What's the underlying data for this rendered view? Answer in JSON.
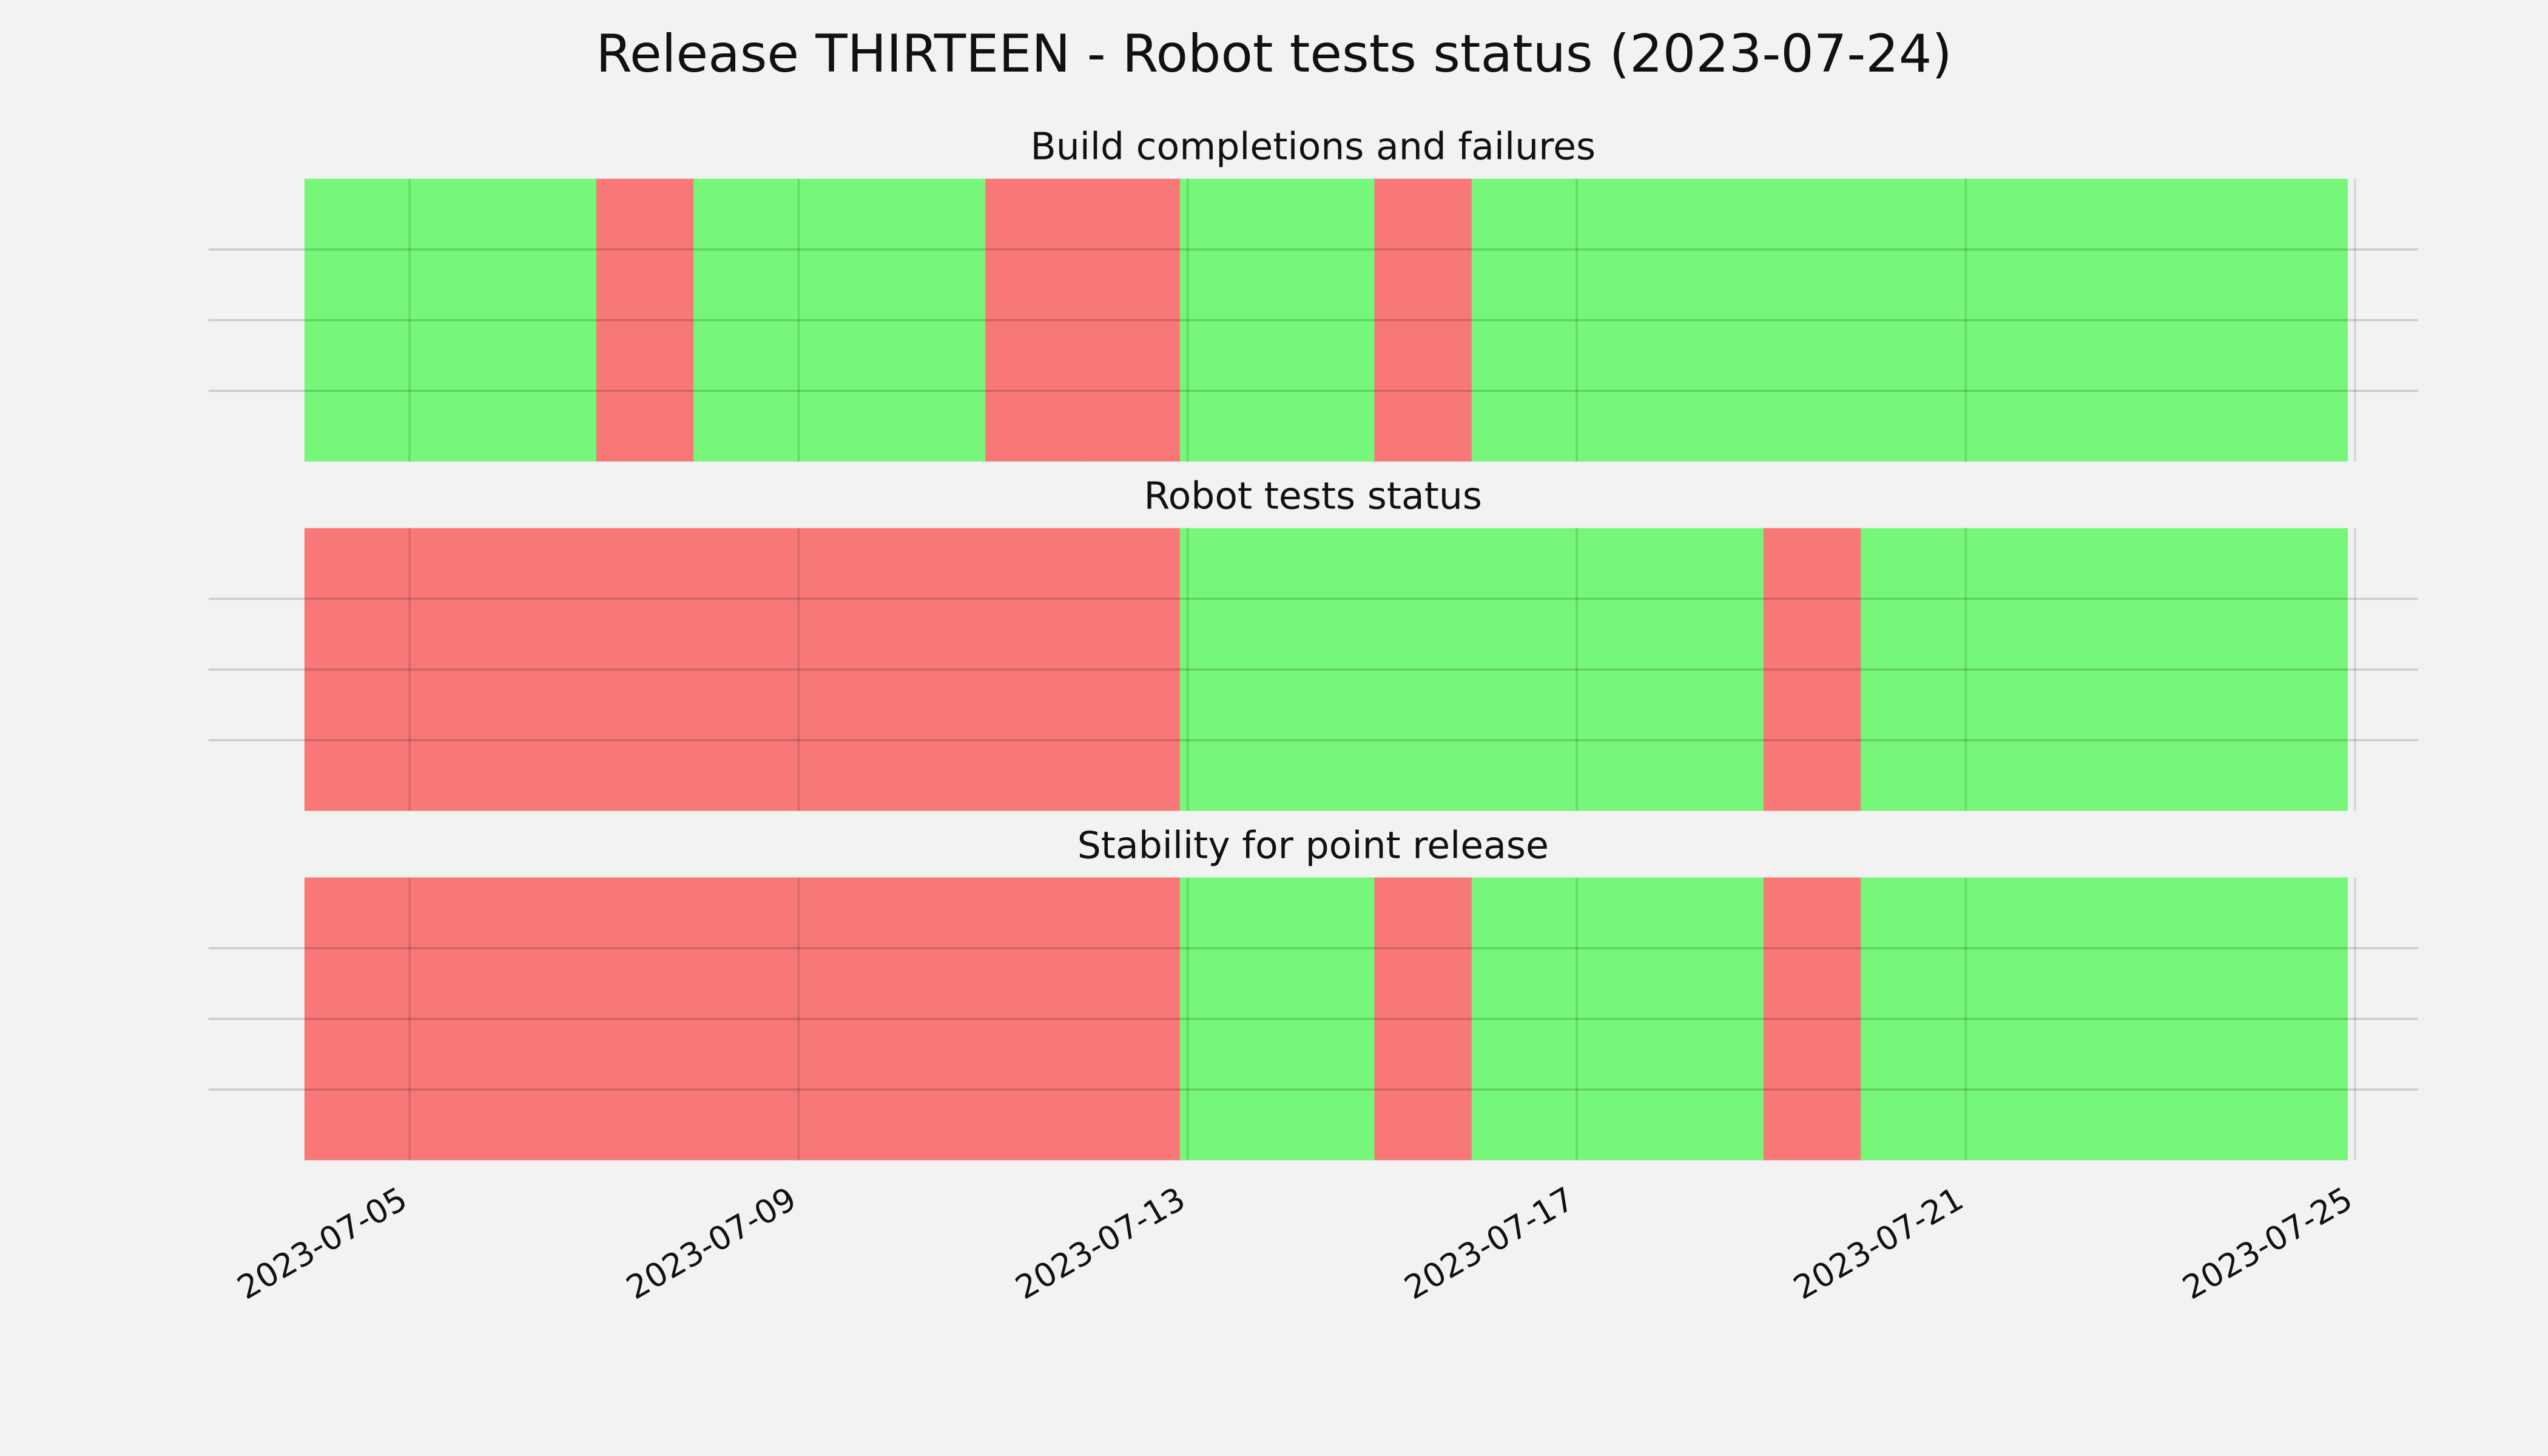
{
  "title": "Release THIRTEEN - Robot tests status (2023-07-24)",
  "chart_data": [
    {
      "type": "timeline",
      "title": "Build completions and failures",
      "categories": [
        "2023-07-04",
        "2023-07-05",
        "2023-07-06",
        "2023-07-07",
        "2023-07-08",
        "2023-07-09",
        "2023-07-10",
        "2023-07-11",
        "2023-07-12",
        "2023-07-13",
        "2023-07-14",
        "2023-07-15",
        "2023-07-16",
        "2023-07-17",
        "2023-07-18",
        "2023-07-19",
        "2023-07-20",
        "2023-07-21",
        "2023-07-22",
        "2023-07-23",
        "2023-07-24"
      ],
      "values": [
        1,
        1,
        1,
        0,
        1,
        1,
        1,
        0,
        0,
        1,
        1,
        0,
        1,
        1,
        1,
        1,
        1,
        1,
        1,
        1,
        1
      ],
      "colors": [
        "#f77876",
        "#76f779"
      ],
      "xlim": [
        "2023-07-03",
        "2023-07-26"
      ],
      "xticks": [
        "2023-07-05",
        "2023-07-09",
        "2023-07-13",
        "2023-07-17",
        "2023-07-21",
        "2023-07-25"
      ],
      "ylim": [
        0,
        1
      ],
      "yticks": [
        0.25,
        0.5,
        0.75
      ],
      "grid": true
    },
    {
      "type": "timeline",
      "title": "Robot tests status",
      "categories": [
        "2023-07-04",
        "2023-07-05",
        "2023-07-06",
        "2023-07-07",
        "2023-07-08",
        "2023-07-09",
        "2023-07-10",
        "2023-07-11",
        "2023-07-12",
        "2023-07-13",
        "2023-07-14",
        "2023-07-15",
        "2023-07-16",
        "2023-07-17",
        "2023-07-18",
        "2023-07-19",
        "2023-07-20",
        "2023-07-21",
        "2023-07-22",
        "2023-07-23",
        "2023-07-24"
      ],
      "values": [
        0,
        0,
        0,
        0,
        0,
        0,
        0,
        0,
        0,
        1,
        1,
        1,
        1,
        1,
        1,
        0,
        1,
        1,
        1,
        1,
        1
      ],
      "colors": [
        "#f77876",
        "#76f779"
      ],
      "xlim": [
        "2023-07-03",
        "2023-07-26"
      ],
      "xticks": [
        "2023-07-05",
        "2023-07-09",
        "2023-07-13",
        "2023-07-17",
        "2023-07-21",
        "2023-07-25"
      ],
      "ylim": [
        0,
        1
      ],
      "yticks": [
        0.25,
        0.5,
        0.75
      ],
      "grid": true
    },
    {
      "type": "timeline",
      "title": "Stability for point release",
      "categories": [
        "2023-07-04",
        "2023-07-05",
        "2023-07-06",
        "2023-07-07",
        "2023-07-08",
        "2023-07-09",
        "2023-07-10",
        "2023-07-11",
        "2023-07-12",
        "2023-07-13",
        "2023-07-14",
        "2023-07-15",
        "2023-07-16",
        "2023-07-17",
        "2023-07-18",
        "2023-07-19",
        "2023-07-20",
        "2023-07-21",
        "2023-07-22",
        "2023-07-23",
        "2023-07-24"
      ],
      "values": [
        0,
        0,
        0,
        0,
        0,
        0,
        0,
        0,
        0,
        1,
        1,
        0,
        1,
        1,
        1,
        0,
        1,
        1,
        1,
        1,
        1
      ],
      "colors": [
        "#f77876",
        "#76f779"
      ],
      "xlim": [
        "2023-07-03",
        "2023-07-26"
      ],
      "xticks": [
        "2023-07-05",
        "2023-07-09",
        "2023-07-13",
        "2023-07-17",
        "2023-07-21",
        "2023-07-25"
      ],
      "ylim": [
        0,
        1
      ],
      "yticks": [
        0.25,
        0.5,
        0.75
      ],
      "grid": true
    }
  ]
}
